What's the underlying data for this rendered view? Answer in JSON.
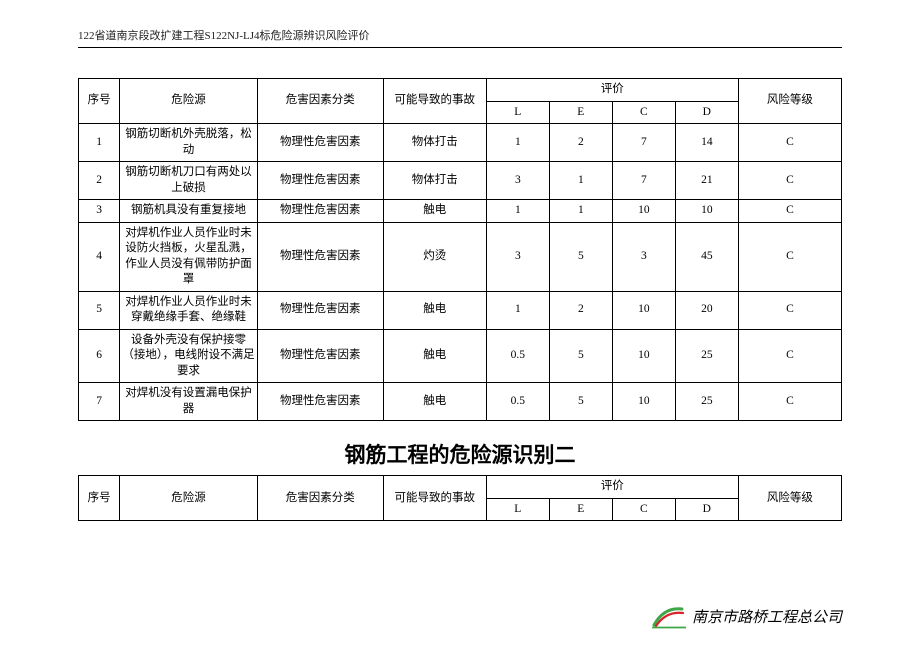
{
  "header": "122省道南京段改扩建工程S122NJ-LJ4标危险源辨识风险评价",
  "table1": {
    "columns": {
      "seq": "序号",
      "source": "危险源",
      "category": "危害因素分类",
      "accident": "可能导致的事故",
      "eval_group": "评价",
      "L": "L",
      "E": "E",
      "C": "C",
      "D": "D",
      "risk": "风险等级"
    },
    "rows": [
      {
        "seq": "1",
        "source": "钢筋切断机外壳脱落，松动",
        "category": "物理性危害因素",
        "accident": "物体打击",
        "L": "1",
        "E": "2",
        "C": "7",
        "D": "14",
        "risk": "C"
      },
      {
        "seq": "2",
        "source": "钢筋切断机刀口有两处以上破损",
        "category": "物理性危害因素",
        "accident": "物体打击",
        "L": "3",
        "E": "1",
        "C": "7",
        "D": "21",
        "risk": "C"
      },
      {
        "seq": "3",
        "source": "钢筋机具没有重复接地",
        "category": "物理性危害因素",
        "accident": "触电",
        "L": "1",
        "E": "1",
        "C": "10",
        "D": "10",
        "risk": "C"
      },
      {
        "seq": "4",
        "source": "对焊机作业人员作业时未设防火挡板，火星乱溅，作业人员没有佩带防护面罩",
        "category": "物理性危害因素",
        "accident": "灼烫",
        "L": "3",
        "E": "5",
        "C": "3",
        "D": "45",
        "risk": "C"
      },
      {
        "seq": "5",
        "source": "对焊机作业人员作业时未穿戴绝缘手套、绝缘鞋",
        "category": "物理性危害因素",
        "accident": "触电",
        "L": "1",
        "E": "2",
        "C": "10",
        "D": "20",
        "risk": "C"
      },
      {
        "seq": "6",
        "source": "设备外壳没有保护接零（接地），电线附设不满足要求",
        "category": "物理性危害因素",
        "accident": "触电",
        "L": "0.5",
        "E": "5",
        "C": "10",
        "D": "25",
        "risk": "C"
      },
      {
        "seq": "7",
        "source": "对焊机没有设置漏电保护器",
        "category": "物理性危害因素",
        "accident": "触电",
        "L": "0.5",
        "E": "5",
        "C": "10",
        "D": "25",
        "risk": "C"
      }
    ]
  },
  "section2_title": "钢筋工程的危险源识别二",
  "table2": {
    "columns": {
      "seq": "序号",
      "source": "危险源",
      "category": "危害因素分类",
      "accident": "可能导致的事故",
      "eval_group": "评价",
      "L": "L",
      "E": "E",
      "C": "C",
      "D": "D",
      "risk": "风险等级"
    }
  },
  "footer_company": "南京市路桥工程总公司",
  "colors": {
    "logo_green": "#3fa648",
    "logo_red": "#d8232a",
    "border": "#000000",
    "text": "#000000"
  }
}
